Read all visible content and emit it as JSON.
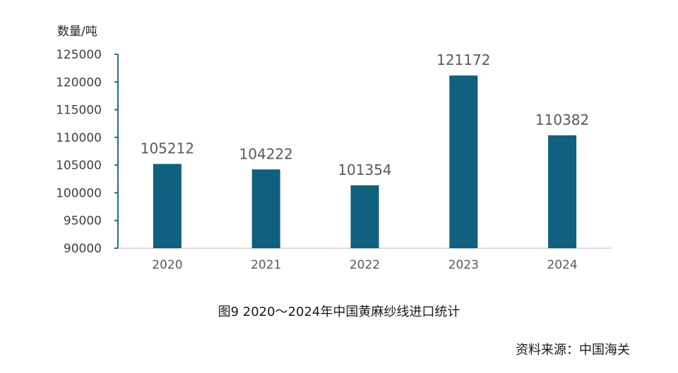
{
  "chart_data": {
    "type": "bar",
    "ylabel": "数量/吨",
    "categories": [
      "2020",
      "2021",
      "2022",
      "2023",
      "2024"
    ],
    "values": [
      105212,
      104222,
      101354,
      121172,
      110382
    ],
    "ylim": [
      90000,
      125000
    ],
    "yticks": [
      90000,
      95000,
      100000,
      105000,
      110000,
      115000,
      120000,
      125000
    ],
    "data_labels": true,
    "grid": false,
    "bar_color": "#10607f",
    "axis_color": "#1f6f8b"
  },
  "caption": "图9  2020～2024年中国黄麻纱线进口统计",
  "source": "资料来源：中国海关"
}
